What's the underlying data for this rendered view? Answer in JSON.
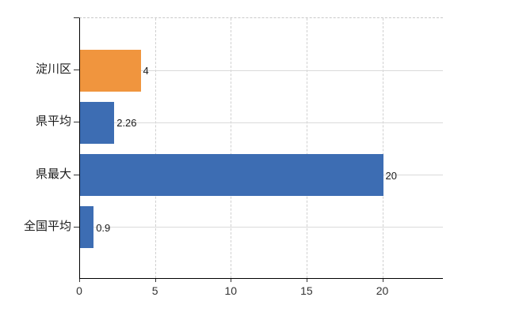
{
  "chart_data": {
    "type": "bar",
    "orientation": "horizontal",
    "title": "",
    "xlabel": "",
    "ylabel": "",
    "categories": [
      "淀川区",
      "県平均",
      "県最大",
      "全国平均"
    ],
    "values": [
      4,
      2.26,
      20,
      0.9
    ],
    "value_labels": [
      "4",
      "2.26",
      "20",
      "0.9"
    ],
    "bar_colors": [
      "#f0953e",
      "#3d6db3",
      "#3d6db3",
      "#3d6db3"
    ],
    "xlim": [
      0,
      24
    ],
    "x_ticks": [
      0,
      5,
      10,
      15,
      20
    ],
    "x_tick_labels": [
      "0",
      "5",
      "10",
      "15",
      "20"
    ],
    "grid": true,
    "legend": false
  },
  "colors": {
    "highlight_bar": "#f0953e",
    "default_bar": "#3d6db3",
    "grid_line": "#dadada",
    "axis_line": "#000000",
    "label_text": "#1a1a1a",
    "tick_text": "#333333",
    "background": "#ffffff"
  }
}
